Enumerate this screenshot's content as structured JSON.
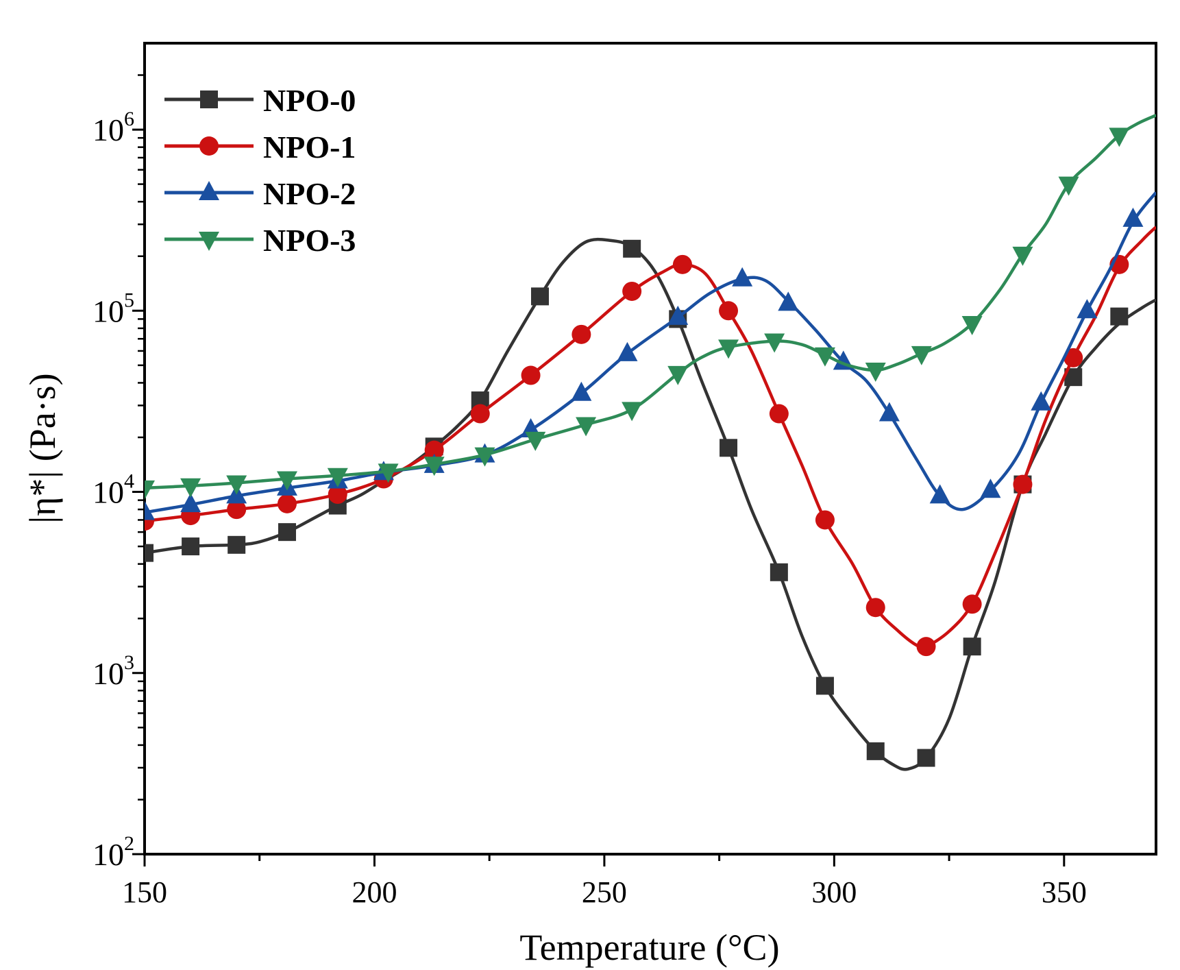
{
  "chart_data": {
    "type": "line",
    "title": "",
    "xlabel": "Temperature (°C)",
    "ylabel": "|η*| (Pa·s)",
    "xlim": [
      150,
      370
    ],
    "ylim": [
      100,
      3000000
    ],
    "yscale": "log",
    "x_ticks": [
      150,
      200,
      250,
      300,
      350
    ],
    "x_tick_labels": [
      "150",
      "200",
      "250",
      "300",
      "350"
    ],
    "y_ticks": [
      100,
      1000,
      10000,
      100000,
      1000000
    ],
    "y_tick_labels": [
      {
        "base": "10",
        "exp": "2"
      },
      {
        "base": "10",
        "exp": "3"
      },
      {
        "base": "10",
        "exp": "4"
      },
      {
        "base": "10",
        "exp": "5"
      },
      {
        "base": "10",
        "exp": "6"
      }
    ],
    "legend_position": "top-left",
    "series": [
      {
        "name": "NPO-0",
        "color": "#333333",
        "marker": "square",
        "curve": [
          [
            150,
            4600
          ],
          [
            160,
            5000
          ],
          [
            170,
            5100
          ],
          [
            175,
            5300
          ],
          [
            181,
            6000
          ],
          [
            187,
            7200
          ],
          [
            192,
            8400
          ],
          [
            197,
            9600
          ],
          [
            202,
            11500
          ],
          [
            208,
            14200
          ],
          [
            213,
            17800
          ],
          [
            218,
            23000
          ],
          [
            223,
            32000
          ],
          [
            229,
            60000
          ],
          [
            236,
            120000
          ],
          [
            241,
            185000
          ],
          [
            246,
            240000
          ],
          [
            251,
            245000
          ],
          [
            256,
            225000
          ],
          [
            261,
            165000
          ],
          [
            266,
            90000
          ],
          [
            271,
            42000
          ],
          [
            277,
            17500
          ],
          [
            282,
            8000
          ],
          [
            288,
            3600
          ],
          [
            293,
            1600
          ],
          [
            298,
            850
          ],
          [
            303,
            560
          ],
          [
            309,
            370
          ],
          [
            313,
            310
          ],
          [
            316,
            295
          ],
          [
            320,
            340
          ],
          [
            325,
            560
          ],
          [
            330,
            1400
          ],
          [
            335,
            3200
          ],
          [
            341,
            11000
          ],
          [
            346,
            21000
          ],
          [
            352,
            43000
          ],
          [
            357,
            63000
          ],
          [
            362,
            85000
          ],
          [
            367,
            104000
          ],
          [
            370,
            115000
          ]
        ],
        "markers": [
          [
            150,
            4600
          ],
          [
            160,
            5000
          ],
          [
            170,
            5100
          ],
          [
            181,
            6000
          ],
          [
            192,
            8400
          ],
          [
            213,
            17800
          ],
          [
            223,
            32000
          ],
          [
            236,
            120000
          ],
          [
            256,
            220000
          ],
          [
            266,
            90000
          ],
          [
            277,
            17500
          ],
          [
            288,
            3600
          ],
          [
            298,
            850
          ],
          [
            309,
            370
          ],
          [
            320,
            340
          ],
          [
            330,
            1400
          ],
          [
            341,
            11000
          ],
          [
            352,
            43000
          ],
          [
            362,
            93000
          ]
        ]
      },
      {
        "name": "NPO-1",
        "color": "#cc1111",
        "marker": "circle",
        "curve": [
          [
            150,
            6900
          ],
          [
            160,
            7400
          ],
          [
            170,
            8000
          ],
          [
            181,
            8600
          ],
          [
            192,
            9700
          ],
          [
            202,
            11800
          ],
          [
            213,
            17000
          ],
          [
            223,
            27000
          ],
          [
            234,
            44000
          ],
          [
            245,
            74000
          ],
          [
            256,
            128000
          ],
          [
            263,
            165000
          ],
          [
            267,
            180000
          ],
          [
            272,
            160000
          ],
          [
            277,
            100000
          ],
          [
            282,
            60000
          ],
          [
            288,
            27000
          ],
          [
            293,
            14000
          ],
          [
            298,
            7000
          ],
          [
            304,
            4000
          ],
          [
            309,
            2300
          ],
          [
            314,
            1700
          ],
          [
            318,
            1420
          ],
          [
            320,
            1400
          ],
          [
            325,
            1700
          ],
          [
            330,
            2400
          ],
          [
            335,
            4600
          ],
          [
            341,
            11000
          ],
          [
            346,
            25000
          ],
          [
            352,
            55000
          ],
          [
            357,
            95000
          ],
          [
            362,
            175000
          ],
          [
            367,
            245000
          ],
          [
            370,
            290000
          ]
        ],
        "markers": [
          [
            150,
            6900
          ],
          [
            160,
            7400
          ],
          [
            170,
            8000
          ],
          [
            181,
            8600
          ],
          [
            192,
            9700
          ],
          [
            202,
            11800
          ],
          [
            213,
            17000
          ],
          [
            223,
            27000
          ],
          [
            234,
            44000
          ],
          [
            245,
            74000
          ],
          [
            256,
            128000
          ],
          [
            267,
            180000
          ],
          [
            277,
            100000
          ],
          [
            288,
            27000
          ],
          [
            298,
            7000
          ],
          [
            309,
            2300
          ],
          [
            320,
            1400
          ],
          [
            330,
            2400
          ],
          [
            341,
            11000
          ],
          [
            352,
            55000
          ],
          [
            362,
            180000
          ]
        ]
      },
      {
        "name": "NPO-2",
        "color": "#1a4fa0",
        "marker": "triangle-up",
        "curve": [
          [
            150,
            7700
          ],
          [
            160,
            8500
          ],
          [
            170,
            9500
          ],
          [
            181,
            10500
          ],
          [
            192,
            11500
          ],
          [
            202,
            12800
          ],
          [
            213,
            14000
          ],
          [
            224,
            16000
          ],
          [
            234,
            22000
          ],
          [
            245,
            35000
          ],
          [
            255,
            58000
          ],
          [
            266,
            92000
          ],
          [
            273,
            125000
          ],
          [
            280,
            150000
          ],
          [
            285,
            147000
          ],
          [
            290,
            113000
          ],
          [
            296,
            78000
          ],
          [
            302,
            52000
          ],
          [
            307,
            41000
          ],
          [
            312,
            27000
          ],
          [
            318,
            15000
          ],
          [
            323,
            9500
          ],
          [
            328,
            8000
          ],
          [
            334,
            10200
          ],
          [
            340,
            16000
          ],
          [
            345,
            31000
          ],
          [
            350,
            55000
          ],
          [
            355,
            100000
          ],
          [
            360,
            170000
          ],
          [
            365,
            310000
          ],
          [
            370,
            450000
          ]
        ],
        "markers": [
          [
            150,
            7700
          ],
          [
            160,
            8500
          ],
          [
            170,
            9500
          ],
          [
            181,
            10500
          ],
          [
            192,
            11500
          ],
          [
            202,
            12800
          ],
          [
            213,
            14000
          ],
          [
            224,
            16000
          ],
          [
            234,
            22000
          ],
          [
            245,
            35000
          ],
          [
            255,
            58000
          ],
          [
            266,
            92000
          ],
          [
            280,
            150000
          ],
          [
            290,
            110000
          ],
          [
            302,
            52000
          ],
          [
            312,
            27000
          ],
          [
            323,
            9500
          ],
          [
            334,
            10200
          ],
          [
            345,
            31000
          ],
          [
            355,
            100000
          ],
          [
            365,
            320000
          ]
        ]
      },
      {
        "name": "NPO-3",
        "color": "#2e8b57",
        "marker": "triangle-down",
        "curve": [
          [
            150,
            10500
          ],
          [
            160,
            10800
          ],
          [
            170,
            11200
          ],
          [
            181,
            11800
          ],
          [
            192,
            12300
          ],
          [
            203,
            13000
          ],
          [
            213,
            14200
          ],
          [
            224,
            16000
          ],
          [
            235,
            19500
          ],
          [
            246,
            23500
          ],
          [
            256,
            28500
          ],
          [
            266,
            45000
          ],
          [
            271,
            55000
          ],
          [
            277,
            63000
          ],
          [
            287,
            68000
          ],
          [
            293,
            65000
          ],
          [
            298,
            57000
          ],
          [
            303,
            50000
          ],
          [
            309,
            47000
          ],
          [
            314,
            51000
          ],
          [
            319,
            58000
          ],
          [
            324,
            66000
          ],
          [
            330,
            85000
          ],
          [
            336,
            130000
          ],
          [
            341,
            205000
          ],
          [
            346,
            300000
          ],
          [
            351,
            500000
          ],
          [
            357,
            700000
          ],
          [
            362,
            930000
          ],
          [
            366,
            1080000
          ],
          [
            370,
            1200000
          ]
        ],
        "markers": [
          [
            150,
            10500
          ],
          [
            160,
            10800
          ],
          [
            170,
            11200
          ],
          [
            181,
            11800
          ],
          [
            192,
            12300
          ],
          [
            203,
            13000
          ],
          [
            213,
            14200
          ],
          [
            224,
            16000
          ],
          [
            235,
            19500
          ],
          [
            246,
            23500
          ],
          [
            256,
            28500
          ],
          [
            266,
            45000
          ],
          [
            277,
            63000
          ],
          [
            287,
            68000
          ],
          [
            298,
            57000
          ],
          [
            309,
            47000
          ],
          [
            319,
            58000
          ],
          [
            330,
            85000
          ],
          [
            341,
            205000
          ],
          [
            351,
            500000
          ],
          [
            362,
            930000
          ]
        ]
      }
    ]
  }
}
